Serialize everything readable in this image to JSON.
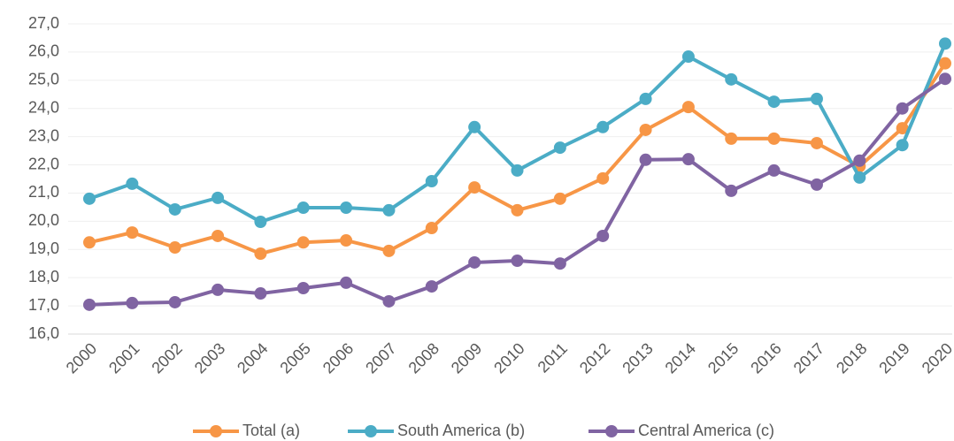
{
  "chart_data": {
    "type": "line",
    "categories": [
      "2000",
      "2001",
      "2002",
      "2003",
      "2004",
      "2005",
      "2006",
      "2007",
      "2008",
      "2009",
      "2010",
      "2011",
      "2012",
      "2013",
      "2014",
      "2015",
      "2016",
      "2017",
      "2018",
      "2019",
      "2020"
    ],
    "series": [
      {
        "name": "Total (a)",
        "color": "#f79646",
        "values": [
          19.25,
          19.6,
          19.07,
          19.48,
          18.85,
          19.25,
          19.32,
          18.95,
          19.76,
          21.2,
          20.39,
          20.8,
          21.52,
          23.24,
          24.05,
          22.93,
          22.93,
          22.77,
          21.95,
          23.3,
          25.6
        ]
      },
      {
        "name": "South America (b)",
        "color": "#4bacc6",
        "values": [
          20.8,
          21.33,
          20.42,
          20.83,
          19.98,
          20.48,
          20.48,
          20.39,
          21.42,
          23.34,
          21.8,
          22.61,
          23.34,
          24.34,
          25.84,
          25.03,
          24.24,
          24.34,
          21.55,
          22.7,
          26.3
        ]
      },
      {
        "name": "Central America (c)",
        "color": "#8064a2",
        "values": [
          17.04,
          17.1,
          17.13,
          17.57,
          17.44,
          17.63,
          17.82,
          17.16,
          17.69,
          18.54,
          18.6,
          18.5,
          19.48,
          22.18,
          22.2,
          21.08,
          21.8,
          21.3,
          22.15,
          24.0,
          25.05
        ]
      }
    ],
    "ylim": [
      16,
      27
    ],
    "yticks": [
      {
        "value": 16,
        "label": "16,0"
      },
      {
        "value": 17,
        "label": "17,0"
      },
      {
        "value": 18,
        "label": "18,0"
      },
      {
        "value": 19,
        "label": "19,0"
      },
      {
        "value": 20,
        "label": "20,0"
      },
      {
        "value": 21,
        "label": "21,0"
      },
      {
        "value": 22,
        "label": "22,0"
      },
      {
        "value": 23,
        "label": "23,0"
      },
      {
        "value": 24,
        "label": "24,0"
      },
      {
        "value": 25,
        "label": "25,0"
      },
      {
        "value": 26,
        "label": "26,0"
      },
      {
        "value": 27,
        "label": "27,0"
      }
    ],
    "grid": true,
    "legend": "bottom"
  }
}
